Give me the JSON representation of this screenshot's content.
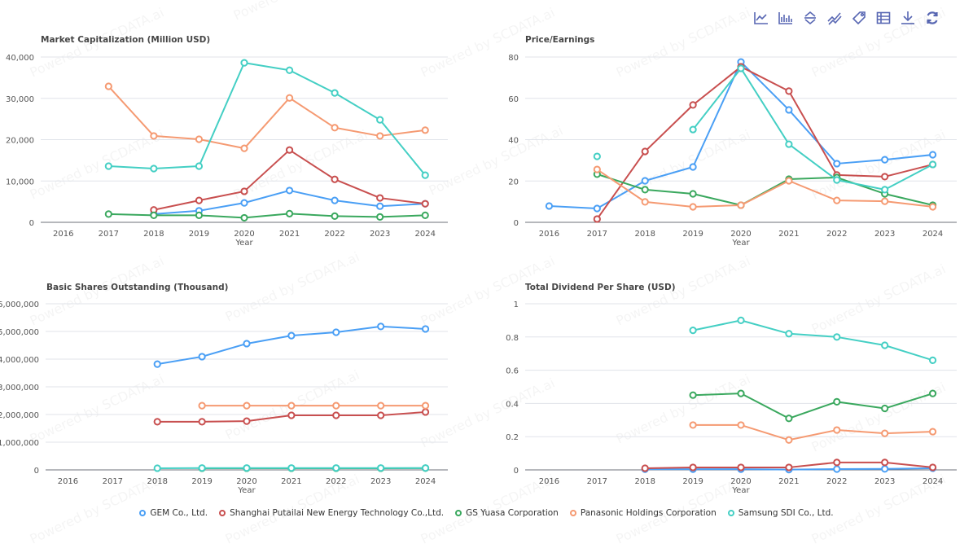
{
  "toolbar": {
    "tools": [
      {
        "name": "line-chart-icon",
        "label": "Switch to line chart"
      },
      {
        "name": "bar-chart-icon",
        "label": "Switch to bar chart"
      },
      {
        "name": "stack-icon",
        "label": "Stack"
      },
      {
        "name": "tiled-icon",
        "label": "Tiled"
      },
      {
        "name": "tag-icon",
        "label": "Label"
      },
      {
        "name": "data-view-icon",
        "label": "Data view"
      },
      {
        "name": "download-icon",
        "label": "Save as image"
      },
      {
        "name": "refresh-icon",
        "label": "Restore"
      }
    ]
  },
  "watermark": "Powered by SCDATA.ai",
  "legend": [
    {
      "name": "GEM Co., Ltd.",
      "color": "#4a9ff5"
    },
    {
      "name": "Shanghai Putailai New Energy Technology Co.,Ltd.",
      "color": "#c84f4f"
    },
    {
      "name": "GS Yuasa Corporation",
      "color": "#3aa85e"
    },
    {
      "name": "Panasonic Holdings Corporation",
      "color": "#f59a72"
    },
    {
      "name": "Samsung SDI Co., Ltd.",
      "color": "#44cfc4"
    }
  ],
  "chart_data": [
    {
      "type": "line",
      "title": "Market Capitalization (Million USD)",
      "xlabel": "Year",
      "ylabel": "",
      "x": [
        "2016",
        "2017",
        "2018",
        "2019",
        "2020",
        "2021",
        "2022",
        "2023",
        "2024"
      ],
      "ylim": [
        0,
        40000
      ],
      "yticks": [
        0,
        10000,
        20000,
        30000,
        40000
      ],
      "ytick_labels": [
        "0",
        "10,000",
        "20,000",
        "30,000",
        "40,000"
      ],
      "grid": true,
      "series": [
        {
          "name": "GEM Co., Ltd.",
          "values": [
            null,
            null,
            2000,
            2800,
            4700,
            7700,
            5300,
            3900,
            4500
          ]
        },
        {
          "name": "Shanghai Putailai New Energy Technology Co.,Ltd.",
          "values": [
            null,
            null,
            3000,
            5300,
            7500,
            17500,
            10400,
            5900,
            4500
          ]
        },
        {
          "name": "GS Yuasa Corporation",
          "values": [
            null,
            2000,
            1700,
            1700,
            1100,
            2100,
            1500,
            1300,
            1700
          ]
        },
        {
          "name": "Panasonic Holdings Corporation",
          "values": [
            null,
            32900,
            20900,
            20100,
            17900,
            30100,
            22900,
            20900,
            22300
          ]
        },
        {
          "name": "Samsung SDI Co., Ltd.",
          "values": [
            null,
            13600,
            13000,
            13600,
            38600,
            36800,
            31300,
            24800,
            11400
          ]
        }
      ]
    },
    {
      "type": "line",
      "title": "Price/Earnings",
      "xlabel": "Year",
      "ylabel": "",
      "x": [
        "2016",
        "2017",
        "2018",
        "2019",
        "2020",
        "2021",
        "2022",
        "2023",
        "2024"
      ],
      "ylim": [
        0,
        80
      ],
      "yticks": [
        0,
        20,
        40,
        60,
        80
      ],
      "ytick_labels": [
        "0",
        "20",
        "40",
        "60",
        "80"
      ],
      "grid": true,
      "series": [
        {
          "name": "GEM Co., Ltd.",
          "values": [
            7.9,
            6.7,
            20.1,
            26.8,
            77.6,
            54.4,
            28.4,
            30.3,
            32.7
          ]
        },
        {
          "name": "Shanghai Putailai New Energy Technology Co.,Ltd.",
          "values": [
            null,
            1.6,
            34.3,
            56.8,
            75.3,
            63.5,
            22.9,
            22.1,
            28.0
          ]
        },
        {
          "name": "GS Yuasa Corporation",
          "values": [
            null,
            23.3,
            15.8,
            13.8,
            8.3,
            20.9,
            21.7,
            13.8,
            8.3
          ]
        },
        {
          "name": "Panasonic Holdings Corporation",
          "values": [
            null,
            25.6,
            9.9,
            7.5,
            8.3,
            20.1,
            10.6,
            10.2,
            7.5
          ]
        },
        {
          "name": "Samsung SDI Co., Ltd.",
          "values": [
            null,
            31.9,
            null,
            44.9,
            74.5,
            37.8,
            20.5,
            15.8,
            28.0
          ]
        }
      ]
    },
    {
      "type": "line",
      "title": "Basic Shares Outstanding (Thousand)",
      "xlabel": "Year",
      "ylabel": "",
      "x": [
        "2016",
        "2017",
        "2018",
        "2019",
        "2020",
        "2021",
        "2022",
        "2023",
        "2024"
      ],
      "ylim": [
        0,
        6000000
      ],
      "yticks": [
        0,
        1000000,
        2000000,
        3000000,
        4000000,
        5000000,
        6000000
      ],
      "ytick_labels": [
        "0",
        "1,000,000",
        "2,000,000",
        "3,000,000",
        "4,000,000",
        "5,000,000",
        "6,000,000"
      ],
      "grid": true,
      "series": [
        {
          "name": "GEM Co., Ltd.",
          "values": [
            null,
            null,
            3820000,
            4090000,
            4560000,
            4850000,
            4970000,
            5180000,
            5090000
          ]
        },
        {
          "name": "Shanghai Putailai New Energy Technology Co.,Ltd.",
          "values": [
            null,
            null,
            1740000,
            1740000,
            1760000,
            1970000,
            1970000,
            1970000,
            2090000
          ]
        },
        {
          "name": "GS Yuasa Corporation",
          "values": [
            null,
            null,
            null,
            60000,
            60000,
            60000,
            60000,
            60000,
            62000
          ]
        },
        {
          "name": "Panasonic Holdings Corporation",
          "values": [
            null,
            null,
            null,
            2320000,
            2320000,
            2320000,
            2320000,
            2320000,
            2320000
          ]
        },
        {
          "name": "Samsung SDI Co., Ltd.",
          "values": [
            null,
            null,
            60000,
            68000,
            68000,
            68000,
            68000,
            68000,
            68000
          ]
        }
      ]
    },
    {
      "type": "line",
      "title": "Total Dividend Per Share (USD)",
      "xlabel": "Year",
      "ylabel": "",
      "x": [
        "2016",
        "2017",
        "2018",
        "2019",
        "2020",
        "2021",
        "2022",
        "2023",
        "2024"
      ],
      "ylim": [
        0,
        1
      ],
      "yticks": [
        0,
        0.2,
        0.4,
        0.6,
        0.8,
        1
      ],
      "ytick_labels": [
        "0",
        "0.2",
        "0.4",
        "0.6",
        "0.8",
        "1"
      ],
      "grid": true,
      "series": [
        {
          "name": "GEM Co., Ltd.",
          "values": [
            null,
            null,
            0.004,
            0.004,
            0.004,
            0.002,
            0.005,
            0.006,
            0.01
          ]
        },
        {
          "name": "Shanghai Putailai New Energy Technology Co.,Ltd.",
          "values": [
            null,
            null,
            0.01,
            0.015,
            0.015,
            0.015,
            0.045,
            0.045,
            0.015
          ]
        },
        {
          "name": "GS Yuasa Corporation",
          "values": [
            null,
            null,
            null,
            0.45,
            0.46,
            0.31,
            0.41,
            0.37,
            0.46
          ]
        },
        {
          "name": "Panasonic Holdings Corporation",
          "values": [
            null,
            null,
            null,
            0.27,
            0.27,
            0.18,
            0.24,
            0.22,
            0.23
          ]
        },
        {
          "name": "Samsung SDI Co., Ltd.",
          "values": [
            null,
            null,
            null,
            0.84,
            0.9,
            0.82,
            0.8,
            0.75,
            0.66
          ]
        }
      ]
    }
  ]
}
